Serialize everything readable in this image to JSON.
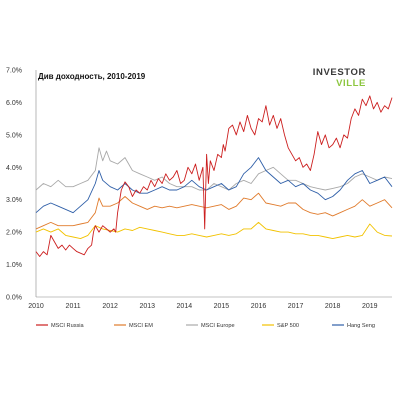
{
  "chart_data": {
    "type": "line",
    "title": "Див доходность, 2010-2019",
    "xlabel": "",
    "ylabel": "",
    "xlim": [
      2010,
      2019.6
    ],
    "ylim": [
      0,
      7
    ],
    "x_ticks": [
      "2010",
      "2011",
      "2012",
      "2013",
      "2014",
      "2015",
      "2016",
      "2017",
      "2018",
      "2019"
    ],
    "y_ticks": [
      "0.0%",
      "1.0%",
      "2.0%",
      "3.0%",
      "4.0%",
      "5.0%",
      "6.0%",
      "7.0%"
    ],
    "grid": false,
    "legend_position": "bottom",
    "series": [
      {
        "name": "MSCI Russia",
        "color": "#cc1f1f",
        "x": [
          2010.0,
          2010.1,
          2010.2,
          2010.3,
          2010.35,
          2010.4,
          2010.5,
          2010.6,
          2010.7,
          2010.8,
          2010.9,
          2011.0,
          2011.1,
          2011.2,
          2011.3,
          2011.4,
          2011.5,
          2011.55,
          2011.6,
          2011.7,
          2011.8,
          2011.9,
          2012.0,
          2012.1,
          2012.15,
          2012.2,
          2012.3,
          2012.4,
          2012.5,
          2012.6,
          2012.7,
          2012.8,
          2012.9,
          2013.0,
          2013.1,
          2013.2,
          2013.3,
          2013.4,
          2013.5,
          2013.6,
          2013.7,
          2013.8,
          2013.9,
          2014.0,
          2014.1,
          2014.2,
          2014.3,
          2014.4,
          2014.5,
          2014.55,
          2014.6,
          2014.65,
          2014.7,
          2014.8,
          2014.9,
          2015.0,
          2015.05,
          2015.1,
          2015.2,
          2015.3,
          2015.4,
          2015.5,
          2015.6,
          2015.7,
          2015.8,
          2015.9,
          2016.0,
          2016.1,
          2016.2,
          2016.3,
          2016.4,
          2016.5,
          2016.6,
          2016.7,
          2016.8,
          2016.9,
          2017.0,
          2017.1,
          2017.2,
          2017.3,
          2017.4,
          2017.5,
          2017.6,
          2017.7,
          2017.8,
          2017.9,
          2018.0,
          2018.1,
          2018.2,
          2018.3,
          2018.4,
          2018.5,
          2018.6,
          2018.7,
          2018.8,
          2018.9,
          2019.0,
          2019.1,
          2019.2,
          2019.3,
          2019.4,
          2019.5,
          2019.6
        ],
        "y": [
          1.4,
          1.25,
          1.4,
          1.3,
          1.6,
          1.9,
          1.7,
          1.5,
          1.6,
          1.45,
          1.6,
          1.5,
          1.4,
          1.35,
          1.3,
          1.5,
          1.6,
          2.0,
          2.2,
          2.0,
          2.2,
          2.1,
          2.0,
          2.1,
          2.0,
          2.6,
          3.3,
          3.55,
          3.4,
          3.1,
          3.3,
          3.2,
          3.4,
          3.3,
          3.6,
          3.4,
          3.65,
          3.5,
          3.8,
          3.6,
          3.7,
          3.9,
          3.5,
          3.6,
          4.0,
          3.8,
          4.1,
          3.6,
          4.0,
          2.1,
          4.4,
          3.5,
          4.2,
          3.9,
          4.4,
          4.3,
          4.7,
          4.5,
          5.2,
          5.3,
          5.0,
          5.4,
          5.1,
          5.6,
          5.2,
          5.0,
          5.5,
          5.4,
          5.9,
          5.3,
          5.6,
          5.2,
          5.5,
          5.0,
          4.6,
          4.4,
          4.2,
          4.3,
          4.0,
          4.1,
          3.9,
          4.4,
          5.1,
          4.7,
          5.0,
          4.6,
          4.7,
          4.9,
          4.6,
          5.0,
          4.9,
          5.5,
          5.8,
          5.6,
          6.1,
          5.9,
          6.2,
          5.8,
          6.0,
          5.7,
          5.9,
          5.8,
          6.15
        ]
      },
      {
        "name": "MSCI EM",
        "color": "#e07b2c",
        "x": [
          2010.0,
          2010.2,
          2010.4,
          2010.6,
          2010.8,
          2011.0,
          2011.2,
          2011.4,
          2011.6,
          2011.7,
          2011.8,
          2012.0,
          2012.2,
          2012.4,
          2012.6,
          2012.8,
          2013.0,
          2013.2,
          2013.4,
          2013.6,
          2013.8,
          2014.0,
          2014.2,
          2014.4,
          2014.6,
          2014.8,
          2015.0,
          2015.2,
          2015.4,
          2015.6,
          2015.8,
          2016.0,
          2016.2,
          2016.4,
          2016.6,
          2016.8,
          2017.0,
          2017.2,
          2017.4,
          2017.6,
          2017.8,
          2018.0,
          2018.2,
          2018.4,
          2018.6,
          2018.8,
          2019.0,
          2019.2,
          2019.4,
          2019.6
        ],
        "y": [
          2.1,
          2.2,
          2.3,
          2.2,
          2.2,
          2.2,
          2.25,
          2.3,
          2.6,
          3.05,
          2.8,
          2.8,
          2.9,
          3.1,
          2.9,
          2.8,
          2.7,
          2.8,
          2.75,
          2.8,
          2.75,
          2.8,
          2.85,
          2.8,
          2.75,
          2.8,
          2.85,
          2.7,
          2.8,
          3.05,
          3.0,
          3.2,
          2.9,
          2.85,
          2.8,
          2.9,
          2.9,
          2.7,
          2.6,
          2.55,
          2.6,
          2.5,
          2.6,
          2.7,
          2.8,
          3.0,
          2.8,
          2.9,
          3.0,
          2.75
        ]
      },
      {
        "name": "MSCI Europe",
        "color": "#a9a9a9",
        "x": [
          2010.0,
          2010.2,
          2010.4,
          2010.6,
          2010.8,
          2011.0,
          2011.2,
          2011.4,
          2011.6,
          2011.7,
          2011.8,
          2011.9,
          2012.0,
          2012.2,
          2012.4,
          2012.6,
          2012.8,
          2013.0,
          2013.2,
          2013.4,
          2013.6,
          2013.8,
          2014.0,
          2014.2,
          2014.4,
          2014.6,
          2014.8,
          2015.0,
          2015.2,
          2015.4,
          2015.6,
          2015.8,
          2016.0,
          2016.2,
          2016.4,
          2016.6,
          2016.8,
          2017.0,
          2017.2,
          2017.4,
          2017.6,
          2017.8,
          2018.0,
          2018.2,
          2018.4,
          2018.6,
          2018.8,
          2019.0,
          2019.2,
          2019.4,
          2019.6
        ],
        "y": [
          3.3,
          3.5,
          3.4,
          3.6,
          3.4,
          3.4,
          3.5,
          3.6,
          3.9,
          4.6,
          4.2,
          4.5,
          4.2,
          4.1,
          4.3,
          3.9,
          3.8,
          3.7,
          3.6,
          3.7,
          3.5,
          3.4,
          3.4,
          3.4,
          3.3,
          3.3,
          3.5,
          3.4,
          3.3,
          3.5,
          3.6,
          3.5,
          3.8,
          3.9,
          4.0,
          3.8,
          3.6,
          3.6,
          3.5,
          3.4,
          3.35,
          3.3,
          3.35,
          3.4,
          3.5,
          3.7,
          3.8,
          3.7,
          3.6,
          3.7,
          3.65
        ]
      },
      {
        "name": "S&P 500",
        "color": "#f2c200",
        "x": [
          2010.0,
          2010.2,
          2010.4,
          2010.6,
          2010.8,
          2011.0,
          2011.2,
          2011.4,
          2011.6,
          2011.8,
          2012.0,
          2012.2,
          2012.4,
          2012.6,
          2012.8,
          2013.0,
          2013.2,
          2013.4,
          2013.6,
          2013.8,
          2014.0,
          2014.2,
          2014.4,
          2014.6,
          2014.8,
          2015.0,
          2015.2,
          2015.4,
          2015.6,
          2015.8,
          2016.0,
          2016.2,
          2016.4,
          2016.6,
          2016.8,
          2017.0,
          2017.2,
          2017.4,
          2017.6,
          2017.8,
          2018.0,
          2018.2,
          2018.4,
          2018.6,
          2018.8,
          2019.0,
          2019.2,
          2019.4,
          2019.6
        ],
        "y": [
          2.0,
          2.1,
          2.0,
          2.1,
          1.9,
          1.85,
          1.8,
          1.9,
          2.2,
          2.1,
          2.05,
          2.0,
          2.1,
          2.05,
          2.15,
          2.1,
          2.05,
          2.0,
          1.95,
          1.9,
          1.9,
          1.95,
          1.9,
          1.85,
          1.9,
          1.95,
          1.9,
          1.95,
          2.1,
          2.1,
          2.3,
          2.1,
          2.05,
          2.0,
          2.0,
          1.95,
          1.95,
          1.9,
          1.9,
          1.85,
          1.8,
          1.85,
          1.9,
          1.85,
          1.9,
          2.25,
          2.0,
          1.9,
          1.88
        ]
      },
      {
        "name": "Hang Seng",
        "color": "#2f5fa8",
        "x": [
          2010.0,
          2010.2,
          2010.4,
          2010.6,
          2010.8,
          2011.0,
          2011.2,
          2011.4,
          2011.6,
          2011.7,
          2011.8,
          2012.0,
          2012.2,
          2012.4,
          2012.6,
          2012.8,
          2013.0,
          2013.2,
          2013.4,
          2013.6,
          2013.8,
          2014.0,
          2014.2,
          2014.4,
          2014.6,
          2014.8,
          2015.0,
          2015.2,
          2015.4,
          2015.6,
          2015.8,
          2016.0,
          2016.2,
          2016.4,
          2016.6,
          2016.8,
          2017.0,
          2017.2,
          2017.4,
          2017.6,
          2017.8,
          2018.0,
          2018.2,
          2018.4,
          2018.6,
          2018.8,
          2019.0,
          2019.2,
          2019.4,
          2019.6
        ],
        "y": [
          2.6,
          2.8,
          2.9,
          2.8,
          2.7,
          2.6,
          2.8,
          3.0,
          3.5,
          3.9,
          3.6,
          3.4,
          3.3,
          3.5,
          3.3,
          3.2,
          3.2,
          3.3,
          3.4,
          3.3,
          3.3,
          3.4,
          3.6,
          3.4,
          3.3,
          3.4,
          3.5,
          3.3,
          3.4,
          3.8,
          4.0,
          4.3,
          3.9,
          3.7,
          3.5,
          3.6,
          3.4,
          3.5,
          3.3,
          3.2,
          3.0,
          3.1,
          3.3,
          3.6,
          3.8,
          3.9,
          3.5,
          3.6,
          3.7,
          3.4
        ]
      }
    ]
  },
  "logo": {
    "line1": "INVESTOR",
    "line2": "VILLE",
    "color_dark": "#3a3a3a",
    "color_green": "#8cc63f"
  }
}
